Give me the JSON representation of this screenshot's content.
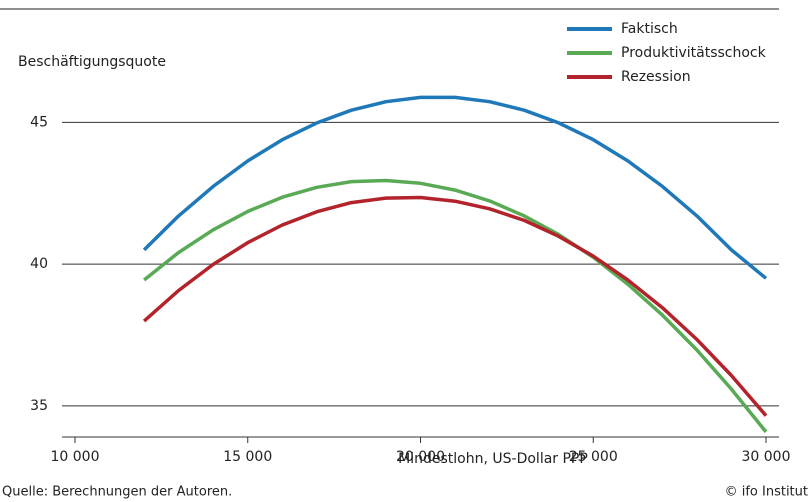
{
  "chart_data": {
    "type": "line",
    "y_label": "Beschäftigungsquote",
    "x_label": "Mindestlohn, US-Dollar PPP",
    "source": "Quelle: Berechnungen der Autoren.",
    "credit": "© ifo Institut",
    "x": [
      12000,
      13000,
      14000,
      15000,
      16000,
      17000,
      18000,
      19000,
      20000,
      21000,
      22000,
      23000,
      24000,
      25000,
      26000,
      27000,
      28000,
      29000,
      30000
    ],
    "series": [
      {
        "name": "Faktisch",
        "color": "#1f78b8",
        "values": [
          40.5,
          41.7,
          42.74,
          43.64,
          44.39,
          44.98,
          45.43,
          45.73,
          45.88,
          45.88,
          45.73,
          45.43,
          44.98,
          44.39,
          43.64,
          42.74,
          41.7,
          40.5,
          39.5
        ]
      },
      {
        "name": "Produktivitätsschock",
        "color": "#5aaa55",
        "values": [
          39.44,
          40.41,
          41.21,
          41.86,
          42.36,
          42.71,
          42.91,
          42.95,
          42.85,
          42.61,
          42.23,
          41.7,
          41.04,
          40.24,
          39.29,
          38.2,
          36.97,
          35.59,
          34.08
        ]
      },
      {
        "name": "Rezession",
        "color": "#b3232b",
        "values": [
          37.99,
          39.07,
          39.99,
          40.76,
          41.38,
          41.85,
          42.17,
          42.33,
          42.35,
          42.22,
          41.95,
          41.54,
          40.98,
          40.28,
          39.44,
          38.46,
          37.34,
          36.07,
          34.65
        ]
      }
    ],
    "xlim": [
      10000,
      30000
    ],
    "xticks": [
      {
        "value": 10000,
        "label": "10 000"
      },
      {
        "value": 15000,
        "label": "15 000"
      },
      {
        "value": 20000,
        "label": "20 000"
      },
      {
        "value": 25000,
        "label": "25 000"
      },
      {
        "value": 30000,
        "label": "30 000"
      }
    ],
    "ylim": [
      33.9,
      49
    ],
    "yticks": [
      35,
      40,
      45
    ],
    "grid": true,
    "legend": "top-right"
  }
}
